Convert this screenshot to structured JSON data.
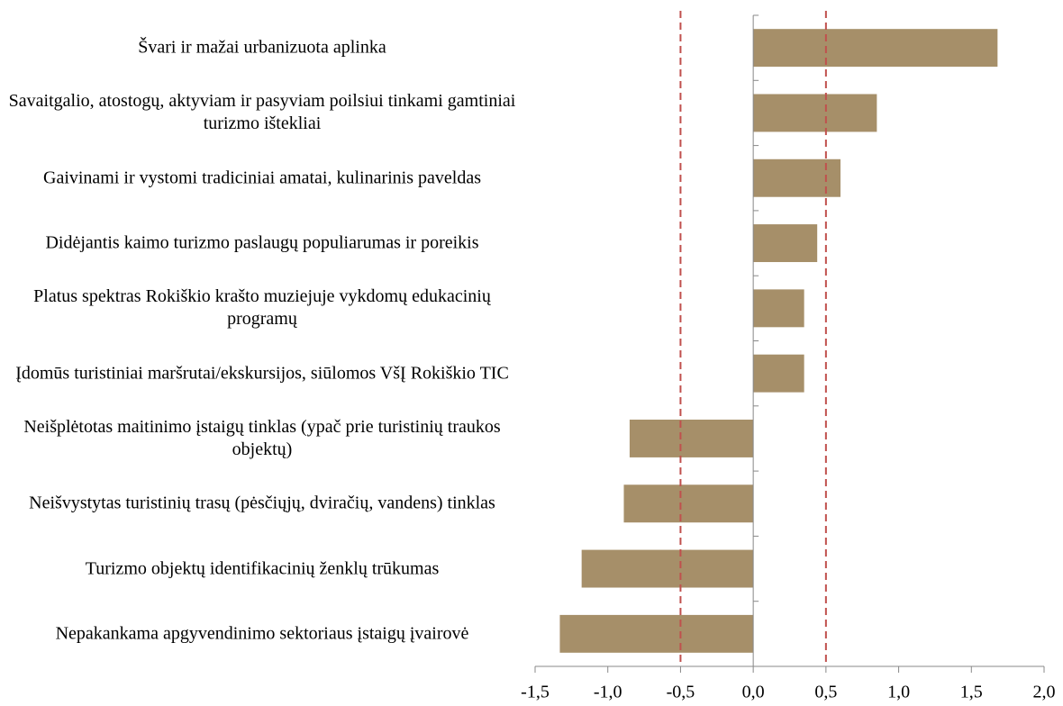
{
  "chart_data": {
    "type": "bar",
    "orientation": "horizontal",
    "categories": [
      "Švari ir mažai urbanizuota aplinka",
      "Savaitgalio, atostogų, aktyviam ir pasyviam poilsiui tinkami gamtiniai turizmo ištekliai",
      "Gaivinami ir vystomi tradiciniai amatai, kulinarinis paveldas",
      "Didėjantis kaimo turizmo paslaugų populiarumas ir poreikis",
      "Platus spektras Rokiškio krašto muziejuje vykdomų edukacinių programų",
      "Įdomūs turistiniai maršrutai/ekskursijos, siūlomos VšĮ Rokiškio TIC",
      "Neišplėtotas maitinimo įstaigų tinklas (ypač prie turistinių traukos objektų)",
      "Neišvystytas turistinių trasų (pėsčiųjų, dviračių, vandens) tinklas",
      "Turizmo objektų identifikacinių ženklų trūkumas",
      "Nepakankama apgyvendinimo sektoriaus įstaigų įvairovė"
    ],
    "values": [
      1.68,
      0.85,
      0.6,
      0.44,
      0.35,
      0.35,
      -0.85,
      -0.89,
      -1.18,
      -1.33
    ],
    "color": "#a68f69",
    "xlim": [
      -1.5,
      2.0
    ],
    "xticks": [
      {
        "value": -1.5,
        "label": "-1,5"
      },
      {
        "value": -1.0,
        "label": "-1,0"
      },
      {
        "value": -0.5,
        "label": "-0,5"
      },
      {
        "value": 0,
        "label": "0,0"
      },
      {
        "value": 0.5,
        "label": "0,5"
      },
      {
        "value": 1.0,
        "label": "1,0"
      },
      {
        "value": 1.5,
        "label": "1,5"
      },
      {
        "value": 2.0,
        "label": "2,0"
      }
    ],
    "reference_lines": [
      -0.5,
      0.5
    ],
    "reference_color": "#c0504d"
  }
}
